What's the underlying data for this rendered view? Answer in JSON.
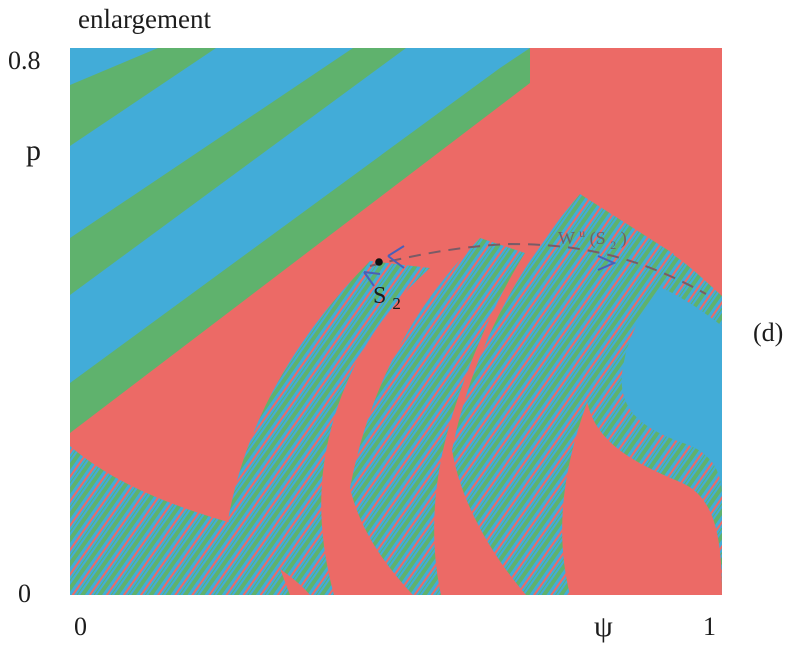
{
  "figure": {
    "title": "enlargement",
    "panel_label": "(d)",
    "y_axis": {
      "label": "p",
      "min_label": "0",
      "max_label": "0.8"
    },
    "x_axis": {
      "label": "ψ",
      "min_label": "0",
      "max_label": "1"
    },
    "colors": {
      "red": "#ec6a66",
      "green": "#5fb26d",
      "blue": "#42acd8",
      "marker": "#111111",
      "manifold": "#7a5b66",
      "arrow": "#4a5fb8"
    },
    "fixed_point": {
      "label_main": "S",
      "label_sub": "2"
    },
    "manifold": {
      "label_main": "W",
      "label_sup": "u",
      "label_open": "(S",
      "label_sub": "2",
      "label_close": ")"
    }
  }
}
